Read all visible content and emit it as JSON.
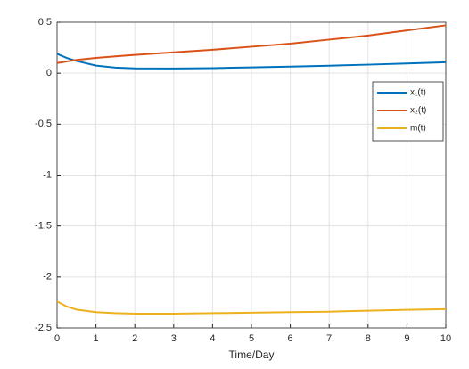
{
  "chart_data": {
    "type": "line",
    "xlabel": "Time/Day",
    "x": [
      0,
      0.25,
      0.5,
      1,
      1.5,
      2,
      3,
      4,
      5,
      6,
      7,
      8,
      9,
      10
    ],
    "series": [
      {
        "name": "x₁(t)",
        "color": "#0072bd",
        "values": [
          0.19,
          0.15,
          0.12,
          0.075,
          0.055,
          0.047,
          0.046,
          0.05,
          0.057,
          0.065,
          0.074,
          0.084,
          0.095,
          0.108
        ]
      },
      {
        "name": "x₂(t)",
        "color": "#d95319",
        "values": [
          0.1,
          0.115,
          0.13,
          0.15,
          0.165,
          0.18,
          0.205,
          0.23,
          0.26,
          0.29,
          0.33,
          0.37,
          0.42,
          0.47
        ]
      },
      {
        "name": "m(t)",
        "color": "#edb120",
        "values": [
          -2.24,
          -2.29,
          -2.32,
          -2.345,
          -2.355,
          -2.36,
          -2.36,
          -2.355,
          -2.35,
          -2.345,
          -2.34,
          -2.33,
          -2.322,
          -2.315
        ]
      }
    ],
    "xlim": [
      0,
      10
    ],
    "xticks": [
      0,
      1,
      2,
      3,
      4,
      5,
      6,
      7,
      8,
      9,
      10
    ],
    "ylim": [
      -2.5,
      0.5
    ],
    "yticks": [
      -2.5,
      -2,
      -1.5,
      -1,
      -0.5,
      0,
      0.5
    ],
    "grid": true,
    "legend": "upper right"
  }
}
